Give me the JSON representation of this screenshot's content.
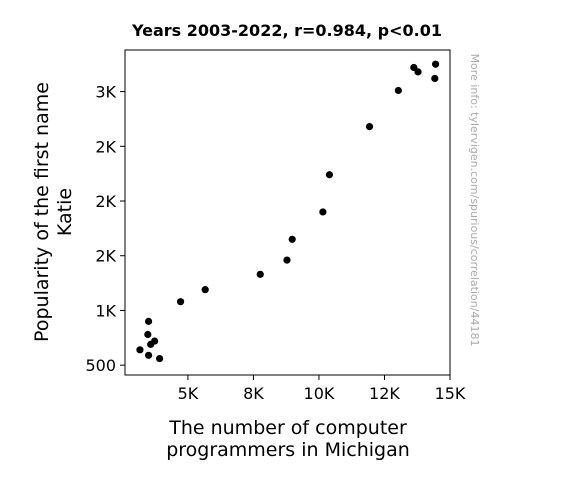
{
  "chart_data": {
    "type": "scatter",
    "title": "Years 2003-2022, r=0.984, p<0.01",
    "xlabel": [
      "The number of computer",
      "programmers in Michigan"
    ],
    "ylabel": [
      "Popularity of the first name",
      "Katie"
    ],
    "xlim": [
      2600,
      15000
    ],
    "ylim": [
      410,
      3380
    ],
    "x_ticks": [
      {
        "value": 5000,
        "label": "5K"
      },
      {
        "value": 7500,
        "label": "8K"
      },
      {
        "value": 10000,
        "label": "10K"
      },
      {
        "value": 12500,
        "label": "12K"
      },
      {
        "value": 15000,
        "label": "15K"
      }
    ],
    "y_ticks": [
      {
        "value": 500,
        "label": "500"
      },
      {
        "value": 1000,
        "label": "1K"
      },
      {
        "value": 1500,
        "label": "2K"
      },
      {
        "value": 2000,
        "label": "2K"
      },
      {
        "value": 2500,
        "label": "2K"
      },
      {
        "value": 3000,
        "label": "3K"
      }
    ],
    "grid": false,
    "marker_color": "#000000",
    "points": [
      {
        "x": 3170,
        "y": 640
      },
      {
        "x": 3470,
        "y": 780
      },
      {
        "x": 3500,
        "y": 590
      },
      {
        "x": 3500,
        "y": 900
      },
      {
        "x": 3580,
        "y": 690
      },
      {
        "x": 3730,
        "y": 720
      },
      {
        "x": 3920,
        "y": 560
      },
      {
        "x": 4720,
        "y": 1080
      },
      {
        "x": 5660,
        "y": 1190
      },
      {
        "x": 7760,
        "y": 1330
      },
      {
        "x": 8780,
        "y": 1460
      },
      {
        "x": 8980,
        "y": 1650
      },
      {
        "x": 10150,
        "y": 1900
      },
      {
        "x": 10400,
        "y": 2240
      },
      {
        "x": 11930,
        "y": 2680
      },
      {
        "x": 13030,
        "y": 3010
      },
      {
        "x": 13620,
        "y": 3220
      },
      {
        "x": 13780,
        "y": 3180
      },
      {
        "x": 14420,
        "y": 3120
      },
      {
        "x": 14450,
        "y": 3250
      }
    ]
  },
  "watermark": "More info: tylervigen.com/spurious/correlation/44181"
}
